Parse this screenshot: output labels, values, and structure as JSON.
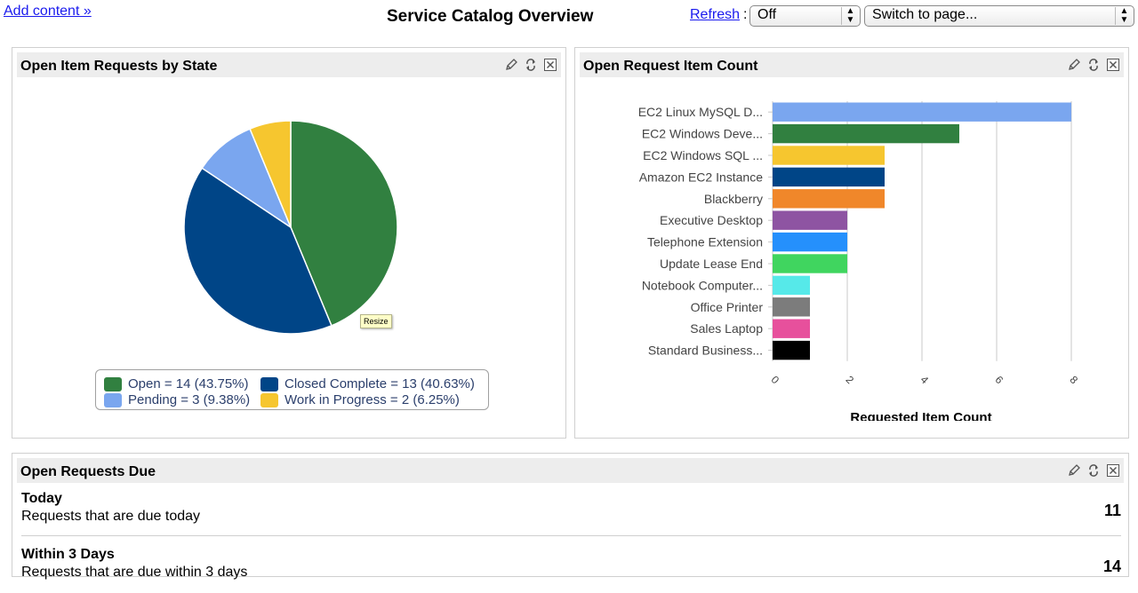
{
  "header": {
    "add_content": "Add content »",
    "title": "Service Catalog Overview",
    "refresh_label": "Refresh",
    "refresh_value": "Off",
    "switch_page": "Switch to page..."
  },
  "panels": {
    "pie": {
      "title": "Open Item Requests by State",
      "resize_tip": "Resize"
    },
    "bar": {
      "title": "Open Request Item Count"
    },
    "due": {
      "title": "Open Requests Due"
    }
  },
  "tool_icons": [
    "edit-icon",
    "refresh-icon",
    "close-icon"
  ],
  "chart_data": [
    {
      "type": "pie",
      "title": "",
      "slices": [
        {
          "label": "Open",
          "value": 14,
          "percent": 43.75,
          "color": "#318040",
          "legend": "Open = 14 (43.75%)"
        },
        {
          "label": "Closed Complete",
          "value": 13,
          "percent": 40.63,
          "color": "#004587",
          "legend": "Closed Complete = 13 (40.63%)"
        },
        {
          "label": "Pending",
          "value": 3,
          "percent": 9.38,
          "color": "#7aa6ef",
          "legend": "Pending = 3 (9.38%)"
        },
        {
          "label": "Work in Progress",
          "value": 2,
          "percent": 6.25,
          "color": "#f6c62f",
          "legend": "Work in Progress = 2 (6.25%)"
        }
      ],
      "legend_position": "bottom"
    },
    {
      "type": "bar",
      "orientation": "horizontal",
      "categories": [
        "EC2 Linux MySQL D...",
        "EC2 Windows Deve...",
        "EC2 Windows SQL ...",
        "Amazon EC2 Instance",
        "Blackberry",
        "Executive Desktop",
        "Telephone Extension",
        "Update Lease End",
        "Notebook Computer...",
        "Office Printer",
        "Sales Laptop",
        "Standard Business..."
      ],
      "values": [
        8,
        5,
        3,
        3,
        3,
        2,
        2,
        2,
        1,
        1,
        1,
        1
      ],
      "colors": [
        "#7aa6ef",
        "#318040",
        "#f6c62f",
        "#004587",
        "#f0872a",
        "#8e54a2",
        "#2590fc",
        "#40d55f",
        "#56e9e9",
        "#7c7c7c",
        "#e7509c",
        "#000000"
      ],
      "xlabel": "Requested Item Count",
      "ylabel": "",
      "xlim": [
        0,
        8
      ],
      "xticks": [
        "0",
        "2",
        "4",
        "6",
        "8"
      ],
      "grid": true
    }
  ],
  "due": [
    {
      "title": "Today",
      "desc": "Requests that are due today",
      "count": "11"
    },
    {
      "title": "Within 3 Days",
      "desc": "Requests that are due within 3 days",
      "count": "14"
    }
  ]
}
